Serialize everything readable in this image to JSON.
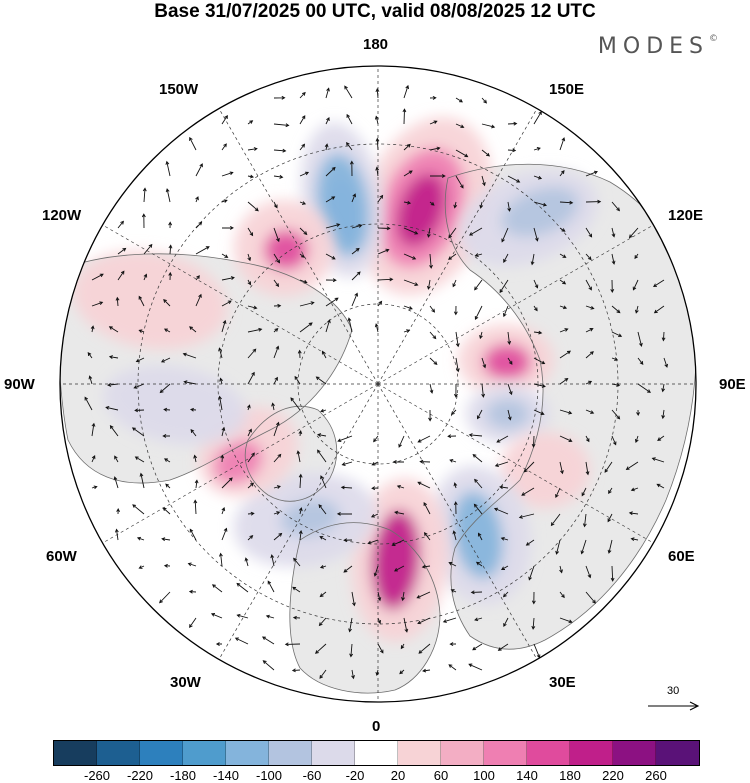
{
  "title": "Base 31/07/2025 00 UTC, valid 08/08/2025 12 UTC",
  "brand": {
    "name": "MODES",
    "mark": "©"
  },
  "map": {
    "projection": "north-polar-stereographic",
    "longitude_labels": {
      "top": "180",
      "bottom": "0",
      "left": "90W",
      "right": "90E",
      "upper_left_1": "150W",
      "upper_left_2": "120W",
      "lower_left_1": "60W",
      "lower_left_2": "30W",
      "upper_right_1": "150E",
      "upper_right_2": "120E",
      "lower_right_1": "60E",
      "lower_right_2": "30E"
    },
    "anomaly_centers": [
      {
        "name": "north-pacific-high",
        "sign": "positive",
        "value": 180
      },
      {
        "name": "bering-low",
        "sign": "negative",
        "value": -140
      },
      {
        "name": "alaska-high",
        "sign": "positive",
        "value": 140
      },
      {
        "name": "east-siberia-low",
        "sign": "negative",
        "value": -100
      },
      {
        "name": "siberia-high",
        "sign": "positive",
        "value": 140
      },
      {
        "name": "siberia-low",
        "sign": "negative",
        "value": -100
      },
      {
        "name": "urals-high",
        "sign": "positive",
        "value": 60
      },
      {
        "name": "scandinavia-low",
        "sign": "negative",
        "value": -140
      },
      {
        "name": "europe-high",
        "sign": "positive",
        "value": 180
      },
      {
        "name": "atlantic-low",
        "sign": "negative",
        "value": -100
      },
      {
        "name": "greenland-high",
        "sign": "positive",
        "value": 100
      },
      {
        "name": "canada-high",
        "sign": "positive",
        "value": 60
      },
      {
        "name": "hudson-low",
        "sign": "negative",
        "value": -60
      }
    ],
    "wind_reference": {
      "value": "30"
    }
  },
  "colorbar": {
    "colors": [
      "#173d5e",
      "#1d5f91",
      "#2d80bd",
      "#4f9ccd",
      "#84b4dc",
      "#b3c4e0",
      "#dcdaea",
      "#ffffff",
      "#f7d3d6",
      "#f3aec4",
      "#ef7fb2",
      "#e04b9d",
      "#c01f8a",
      "#8c1182",
      "#5a1278"
    ],
    "ticks": [
      "-260",
      "-220",
      "-180",
      "-140",
      "-100",
      "-60",
      "-20",
      "20",
      "60",
      "100",
      "140",
      "180",
      "220",
      "260"
    ]
  }
}
